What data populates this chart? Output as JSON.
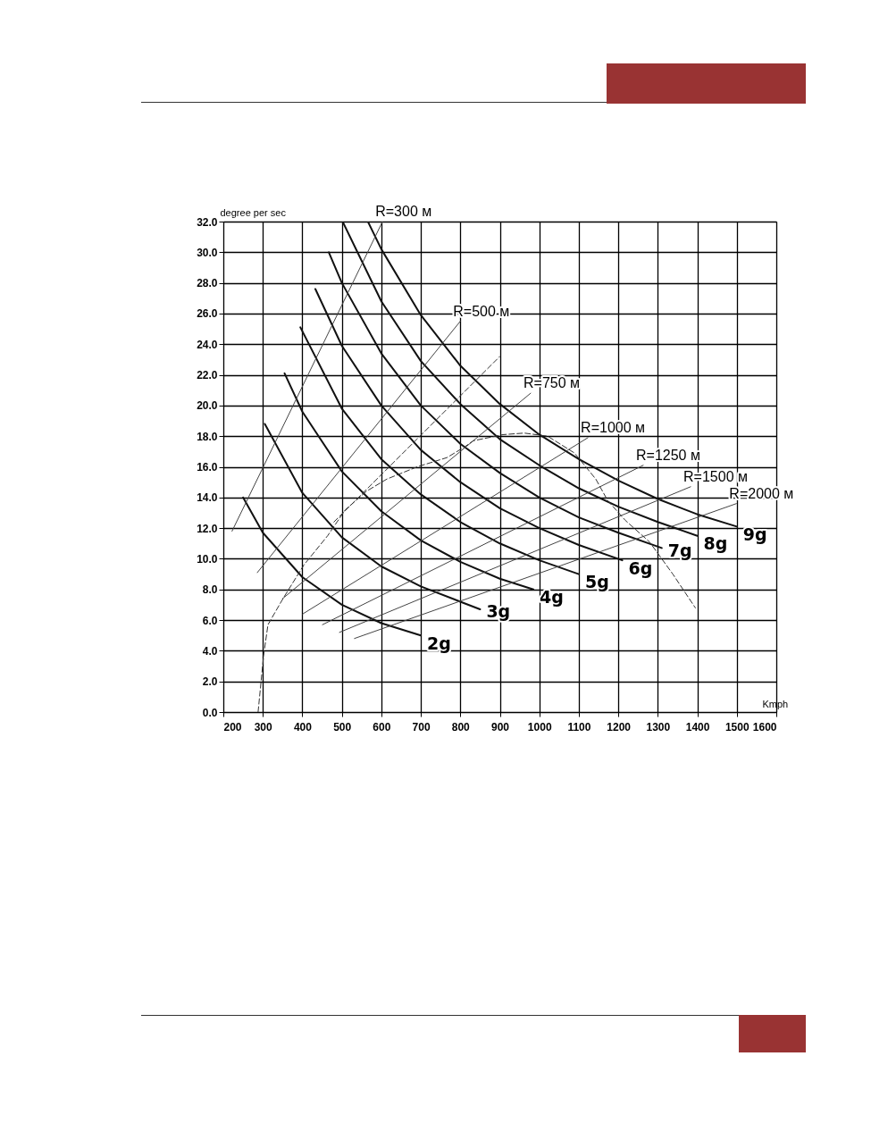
{
  "chart_data": {
    "type": "line",
    "xlabel": "Kmph",
    "ylabel": "degree per sec",
    "xlim": [
      200,
      1600
    ],
    "xticks": [
      200,
      300,
      400,
      500,
      600,
      700,
      800,
      900,
      1000,
      1100,
      1200,
      1300,
      1400,
      1500,
      1600
    ],
    "ylim": [
      0,
      32
    ],
    "yticks": [
      {
        "value": 0,
        "label": "0.0"
      },
      {
        "value": 2,
        "label": "2.0"
      },
      {
        "value": 4,
        "label": "4.0"
      },
      {
        "value": 6,
        "label": "6.0"
      },
      {
        "value": 8,
        "label": "8.0"
      },
      {
        "value": 10,
        "label": "10.0"
      },
      {
        "value": 12,
        "label": "12.0"
      },
      {
        "value": 14,
        "label": "14.0"
      },
      {
        "value": 16,
        "label": "16.0"
      },
      {
        "value": 18,
        "label": "18.0"
      },
      {
        "value": 20,
        "label": "20.0"
      },
      {
        "value": 22,
        "label": "22.0"
      },
      {
        "value": 24,
        "label": "24.0"
      },
      {
        "value": 26,
        "label": "26.0"
      },
      {
        "value": 28,
        "label": "28.0"
      },
      {
        "value": 30,
        "label": "30.0"
      },
      {
        "value": 32,
        "label": "32.0"
      }
    ],
    "grid": true,
    "marker": "none",
    "series": [
      {
        "name": "2g",
        "color": "#111111",
        "x": [
          250,
          300,
          400,
          500,
          600,
          700
        ],
        "values": [
          14.0,
          11.7,
          8.8,
          7.0,
          5.8,
          5.0
        ]
      },
      {
        "name": "3g",
        "color": "#111111",
        "x": [
          305,
          400,
          500,
          600,
          700,
          800,
          850
        ],
        "values": [
          18.8,
          14.3,
          11.4,
          9.5,
          8.2,
          7.2,
          6.7
        ]
      },
      {
        "name": "4g",
        "color": "#111111",
        "x": [
          355,
          400,
          500,
          600,
          700,
          800,
          900,
          985
        ],
        "values": [
          22.1,
          19.6,
          15.7,
          13.1,
          11.2,
          9.8,
          8.7,
          8.0
        ]
      },
      {
        "name": "5g",
        "color": "#111111",
        "x": [
          395,
          500,
          600,
          700,
          800,
          900,
          1000,
          1100
        ],
        "values": [
          25.1,
          19.8,
          16.5,
          14.2,
          12.4,
          11.0,
          9.9,
          9.0
        ]
      },
      {
        "name": "6g",
        "color": "#111111",
        "x": [
          433,
          500,
          600,
          700,
          800,
          900,
          1000,
          1100,
          1210
        ],
        "values": [
          27.6,
          23.9,
          20.0,
          17.1,
          15.0,
          13.3,
          12.0,
          10.9,
          9.9
        ]
      },
      {
        "name": "7g",
        "color": "#111111",
        "x": [
          467,
          500,
          600,
          700,
          800,
          900,
          1000,
          1100,
          1200,
          1310
        ],
        "values": [
          30.0,
          28.0,
          23.4,
          20.0,
          17.5,
          15.6,
          14.0,
          12.7,
          11.7,
          10.7
        ]
      },
      {
        "name": "8g",
        "color": "#111111",
        "x": [
          502,
          600,
          700,
          800,
          900,
          1000,
          1100,
          1200,
          1300,
          1400
        ],
        "values": [
          32.0,
          26.8,
          22.9,
          20.1,
          17.8,
          16.1,
          14.6,
          13.4,
          12.4,
          11.5
        ]
      },
      {
        "name": "9g",
        "color": "#111111",
        "x": [
          566,
          600,
          700,
          800,
          900,
          1000,
          1100,
          1200,
          1300,
          1400,
          1500
        ],
        "values": [
          32.0,
          30.2,
          25.9,
          22.6,
          20.1,
          18.1,
          16.5,
          15.1,
          13.9,
          12.9,
          12.1
        ]
      },
      {
        "name": "R=300 м",
        "color": "#444444",
        "x": [
          222,
          603
        ],
        "values": [
          11.8,
          32.0
        ]
      },
      {
        "name": "R=500 м",
        "color": "#444444",
        "x": [
          286,
          800
        ],
        "values": [
          9.1,
          25.5
        ]
      },
      {
        "name": "R=750 м",
        "color": "#444444",
        "x": [
          350,
          978
        ],
        "values": [
          7.4,
          20.8
        ]
      },
      {
        "name": "R=1000 м",
        "color": "#444444",
        "x": [
          401,
          1123
        ],
        "values": [
          6.4,
          17.9
        ]
      },
      {
        "name": "R=1250 м",
        "color": "#444444",
        "x": [
          451,
          1263
        ],
        "values": [
          5.7,
          16.1
        ]
      },
      {
        "name": "R=1500 м",
        "color": "#444444",
        "x": [
          494,
          1383
        ],
        "values": [
          5.2,
          14.7
        ]
      },
      {
        "name": "R=2000 м",
        "color": "#444444",
        "x": [
          532,
          1499
        ],
        "values": [
          4.8,
          13.6
        ]
      },
      {
        "color": "#333333",
        "line_style": "dashed",
        "x": [
          288,
          302,
          313,
          351,
          404,
          464,
          509,
          562,
          614,
          691,
          766,
          811,
          833,
          908,
          962,
          1021,
          1089,
          1143,
          1173,
          1218,
          1279,
          1338,
          1395
        ],
        "values": [
          0,
          3.7,
          5.7,
          7.4,
          9.6,
          11.5,
          13.2,
          14.4,
          15.2,
          16.0,
          16.6,
          17.3,
          17.7,
          18.1,
          18.2,
          18.0,
          16.9,
          15.2,
          13.8,
          12.5,
          11.1,
          9.0,
          6.8
        ]
      },
      {
        "color": "#333333",
        "line_style": "dashed",
        "x": [
          480,
          900
        ],
        "values": [
          12.4,
          23.2
        ]
      }
    ]
  }
}
